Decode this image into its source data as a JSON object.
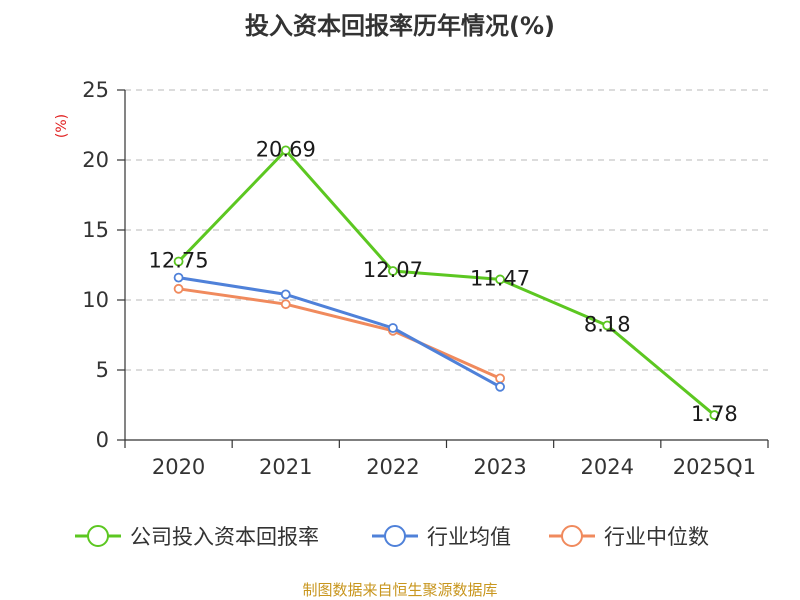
{
  "chart_data": {
    "type": "line",
    "title": "投入资本回报率历年情况(%)",
    "ylabel": "(%)",
    "xlabel": "",
    "ylim": [
      0,
      25
    ],
    "yticks": [
      0,
      5,
      10,
      15,
      20,
      25
    ],
    "grid": true,
    "legend_position": "bottom",
    "categories": [
      "2020",
      "2021",
      "2022",
      "2023",
      "2024",
      "2025Q1"
    ],
    "series": [
      {
        "name": "公司投入资本回报率",
        "color": "#5cc721",
        "values": [
          12.75,
          20.69,
          12.07,
          11.47,
          8.18,
          1.78
        ],
        "labels": [
          "12.75",
          "20.69",
          "12.07",
          "11.47",
          "8.18",
          "1.78"
        ],
        "show_labels": true
      },
      {
        "name": "行业均值",
        "color": "#4f81d9",
        "values": [
          11.6,
          10.4,
          8.0,
          3.8,
          null,
          null
        ],
        "show_labels": false
      },
      {
        "name": "行业中位数",
        "color": "#f08a5d",
        "values": [
          10.8,
          9.7,
          7.8,
          4.4,
          null,
          null
        ],
        "show_labels": false
      }
    ]
  },
  "footer": {
    "source": "制图数据来自恒生聚源数据库"
  }
}
